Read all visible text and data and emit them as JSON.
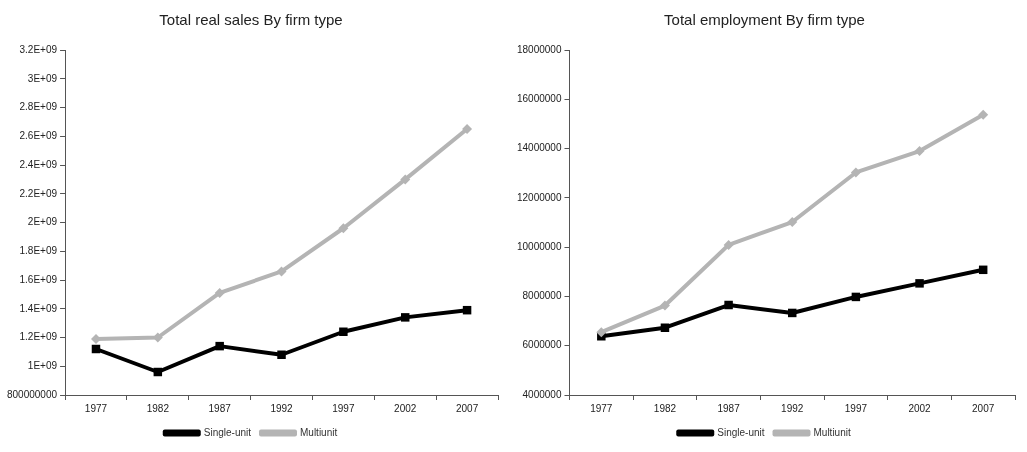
{
  "chart_data": [
    {
      "type": "line",
      "title": "Total real sales By firm type",
      "categories": [
        "1977",
        "1982",
        "1987",
        "1992",
        "1997",
        "2002",
        "2007"
      ],
      "series": [
        {
          "name": "Single-unit",
          "color": "#000000",
          "marker": "square",
          "values": [
            1120000000,
            960000000,
            1140000000,
            1080000000,
            1240000000,
            1340000000,
            1390000000
          ]
        },
        {
          "name": "Multiunit",
          "color": "#b4b4b4",
          "marker": "diamond",
          "values": [
            1190000000,
            1200000000,
            1510000000,
            1660000000,
            1960000000,
            2300000000,
            2650000000
          ]
        }
      ],
      "ylim": [
        800000000,
        3200000000
      ],
      "yticks": [
        800000000,
        {
          "value": 1000000000,
          "label": "1E+09"
        },
        {
          "value": 1200000000,
          "label": "1.2E+09"
        },
        {
          "value": 1400000000,
          "label": "1.4E+09"
        },
        {
          "value": 1600000000,
          "label": "1.6E+09"
        },
        {
          "value": 1800000000,
          "label": "1.8E+09"
        },
        {
          "value": 2000000000,
          "label": "2E+09"
        },
        {
          "value": 2200000000,
          "label": "2.2E+09"
        },
        {
          "value": 2400000000,
          "label": "2.4E+09"
        },
        {
          "value": 2600000000,
          "label": "2.6E+09"
        },
        {
          "value": 2800000000,
          "label": "2.8E+09"
        },
        {
          "value": 3000000000,
          "label": "3E+09"
        },
        {
          "value": 3200000000,
          "label": "3.2E+09"
        }
      ],
      "grid": false,
      "legend": "bottom",
      "line_style": "solid"
    },
    {
      "type": "line",
      "title": "Total employment By firm type",
      "categories": [
        "1977",
        "1982",
        "1987",
        "1992",
        "1997",
        "2002",
        "2007"
      ],
      "series": [
        {
          "name": "Single-unit",
          "color": "#000000",
          "marker": "square",
          "values": [
            6380000,
            6730000,
            7650000,
            7330000,
            7980000,
            8530000,
            9080000
          ]
        },
        {
          "name": "Multiunit",
          "color": "#b4b4b4",
          "marker": "diamond",
          "values": [
            6550000,
            7630000,
            10090000,
            11020000,
            13030000,
            13900000,
            15370000
          ]
        }
      ],
      "ylim": [
        4000000,
        18000000
      ],
      "yticks": [
        4000000,
        6000000,
        8000000,
        10000000,
        12000000,
        14000000,
        16000000,
        18000000
      ],
      "grid": false,
      "legend": "bottom",
      "line_style": "solid"
    }
  ]
}
